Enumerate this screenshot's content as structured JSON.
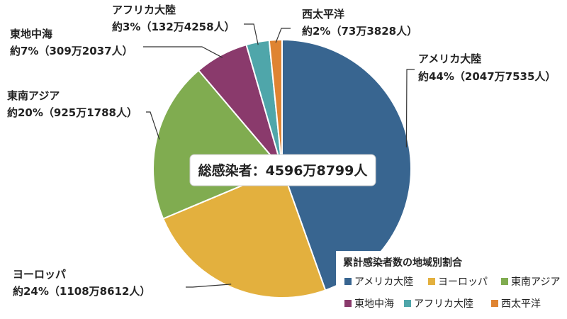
{
  "chart_data": {
    "type": "pie",
    "center_label": "総感染者：4596万8799人",
    "legend_title": "累計感染者数の地域別割合",
    "legend_position": "bottom-right",
    "slices": [
      {
        "name": "アメリカ大陸",
        "value": 20477535,
        "percent_label": "約44%（2047万7535人）",
        "color": "#386590"
      },
      {
        "name": "ヨーロッパ",
        "value": 11088612,
        "percent_label": "約24%（1108万8612人）",
        "color": "#E3B03E"
      },
      {
        "name": "東南アジア",
        "value": 9251788,
        "percent_label": "約20%（925万1788人）",
        "color": "#80AC50"
      },
      {
        "name": "東地中海",
        "value": 3092037,
        "percent_label": "約7%（309万2037人）",
        "color": "#8A3A6C"
      },
      {
        "name": "アフリカ大陸",
        "value": 1324258,
        "percent_label": "約3%（132万4258人）",
        "color": "#4FA6AA"
      },
      {
        "name": "西太平洋",
        "value": 733828,
        "percent_label": "約2%（73万3828人）",
        "color": "#DF8432"
      }
    ]
  }
}
